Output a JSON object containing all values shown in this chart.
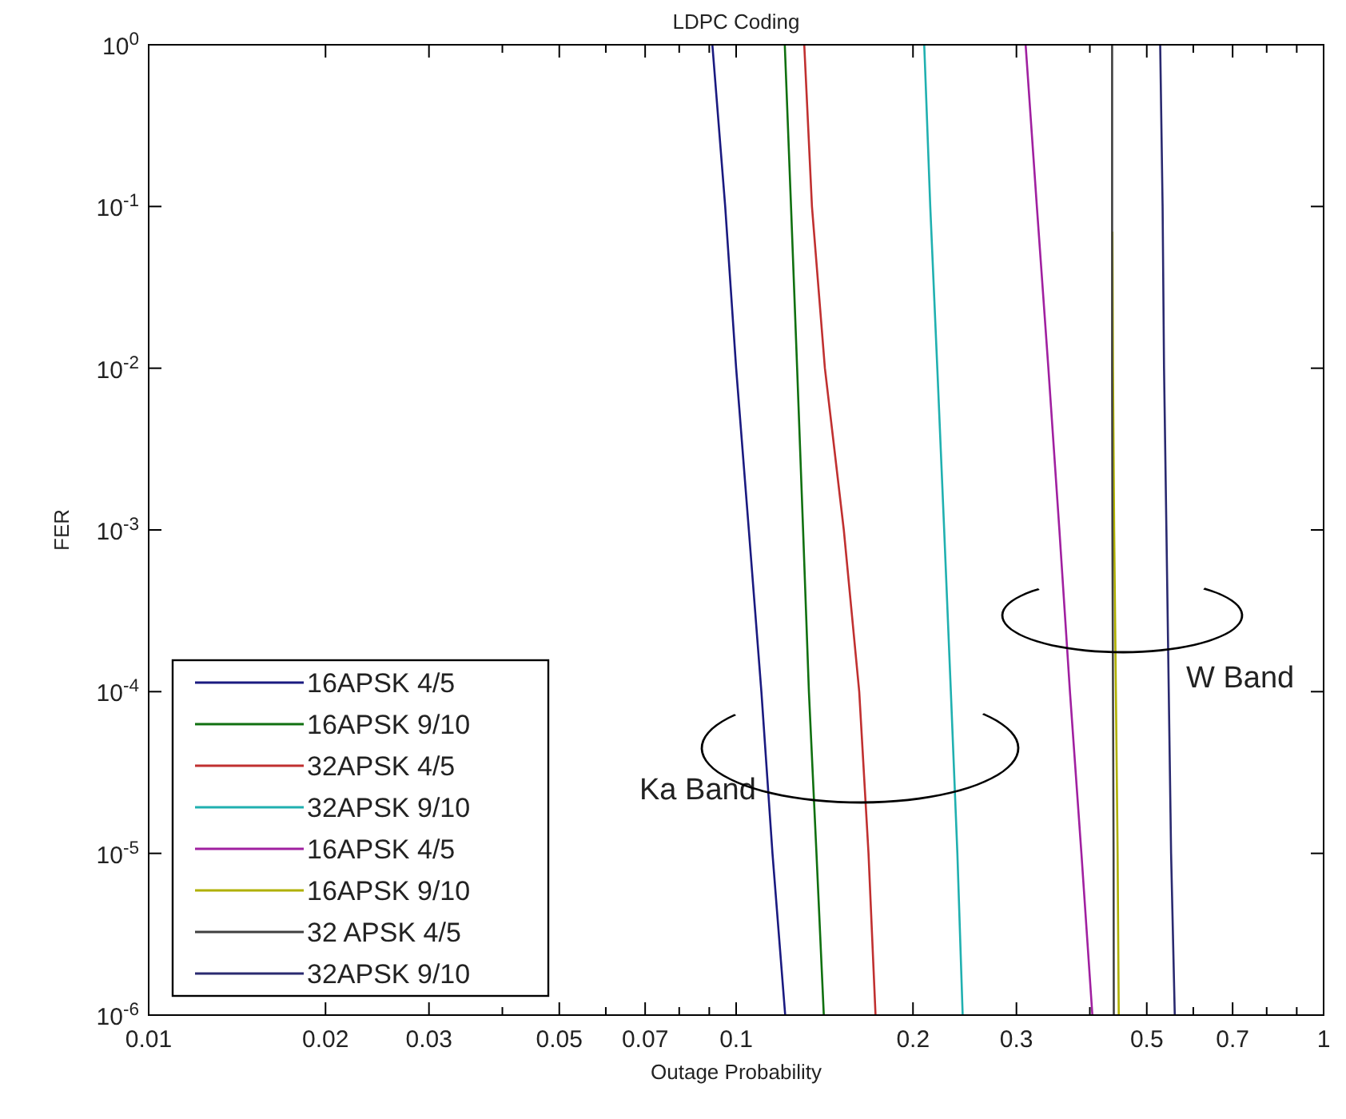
{
  "chart_data": {
    "type": "line",
    "title": "LDPC Coding",
    "xlabel": "Outage Probability",
    "ylabel": "FER",
    "log": "xy",
    "grid": false,
    "legend": "bottom left",
    "marker": "none",
    "line_style": "solid",
    "xlim": [
      0.01,
      1
    ],
    "ylim": [
      1e-06,
      1
    ],
    "xticks": [
      0.01,
      0.02,
      0.03,
      {
        "value": 0.04,
        "label": null
      },
      0.05,
      {
        "value": 0.06,
        "label": null
      },
      0.07,
      {
        "value": 0.08,
        "label": null
      },
      {
        "value": 0.09,
        "label": null
      },
      0.1,
      0.2,
      0.3,
      {
        "value": 0.4,
        "label": null
      },
      0.5,
      {
        "value": 0.6,
        "label": null
      },
      0.7,
      {
        "value": 0.8,
        "label": null
      },
      {
        "value": 0.9,
        "label": null
      },
      1
    ],
    "yticks": [
      {
        "value": 1e-06,
        "label": "10$^{-6}$"
      },
      {
        "value": 1e-05,
        "label": "10$^{-5}$"
      },
      {
        "value": 0.0001,
        "label": "10$^{-4}$"
      },
      {
        "value": 0.001,
        "label": "10$^{-3}$"
      },
      {
        "value": 0.01,
        "label": "10$^{-2}$"
      },
      {
        "value": 0.1,
        "label": "10$^{-1}$"
      },
      {
        "value": 1,
        "label": "10$^{0}$"
      }
    ],
    "series": [
      {
        "name": "16APSK 4/5",
        "color": "#1a1a80",
        "x": [
          0.0911,
          0.0958,
          0.1,
          0.1051,
          0.1104,
          0.1153,
          0.1212
        ],
        "values": [
          1,
          0.1,
          0.01,
          0.001,
          0.0001,
          1e-05,
          1e-06
        ]
      },
      {
        "name": "16APSK 9/10",
        "color": "#107010",
        "x": [
          0.121,
          0.124,
          0.127,
          0.13,
          0.133,
          0.137,
          0.141
        ],
        "values": [
          1,
          0.1,
          0.01,
          0.001,
          0.0001,
          1e-05,
          1e-06
        ]
      },
      {
        "name": "32APSK 4/5",
        "color": "#c03030",
        "x": [
          0.1306,
          0.1346,
          0.1416,
          0.1525,
          0.162,
          0.168,
          0.1727
        ],
        "values": [
          1,
          0.1,
          0.01,
          0.001,
          0.0001,
          1e-05,
          1e-06
        ]
      },
      {
        "name": "32APSK 9/10",
        "color": "#20b0b0",
        "x": [
          0.209,
          0.214,
          0.22,
          0.226,
          0.232,
          0.238,
          0.243
        ],
        "values": [
          1,
          0.1,
          0.01,
          0.001,
          0.0001,
          1e-05,
          1e-06
        ]
      },
      {
        "name": "16APSK 4/5",
        "color": "#a020a0",
        "x": [
          0.311,
          0.325,
          0.34,
          0.355,
          0.37,
          0.387,
          0.404
        ],
        "values": [
          1,
          0.1,
          0.01,
          0.001,
          0.0001,
          1e-05,
          1e-06
        ]
      },
      {
        "name": "16APSK 9/10",
        "color": "#b0b000",
        "x": [
          0.437,
          0.438,
          0.44,
          0.443,
          0.446,
          0.448
        ],
        "values": [
          0.07,
          0.01,
          0.001,
          0.0001,
          1e-05,
          1e-06
        ]
      },
      {
        "name": "32 APSK 4/5",
        "color": "#404040",
        "x": [
          0.4365,
          0.4365,
          0.437,
          0.438,
          0.439,
          0.4394
        ],
        "values": [
          1,
          0.01,
          0.001,
          0.0001,
          1e-05,
          1e-06
        ]
      },
      {
        "name": "32APSK 9/10",
        "color": "#2a2a70",
        "x": [
          0.527,
          0.532,
          0.535,
          0.54,
          0.545,
          0.55,
          0.558
        ],
        "values": [
          1,
          0.1,
          0.01,
          0.001,
          0.0001,
          1e-05,
          1e-06
        ]
      }
    ],
    "annotations": [
      "Ka Band",
      "W Band"
    ]
  }
}
